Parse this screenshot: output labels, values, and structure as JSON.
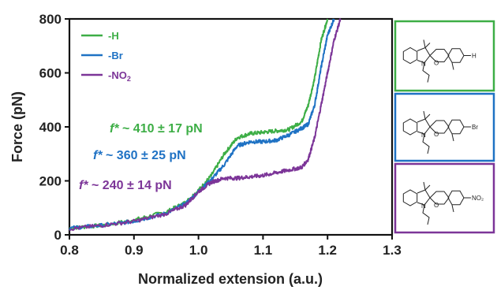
{
  "chart_data": {
    "type": "line",
    "xlabel": "Normalized extension (a.u.)",
    "ylabel": "Force (pN)",
    "xlim": [
      0.8,
      1.3
    ],
    "ylim": [
      0,
      800
    ],
    "xticks": [
      "0.8",
      "0.9",
      "1.0",
      "1.1",
      "1.2",
      "1.3"
    ],
    "yticks": [
      "0",
      "200",
      "400",
      "600",
      "800"
    ],
    "grid": false,
    "legend_position": "top-left",
    "series": [
      {
        "name": "-H",
        "color": "#3dae46",
        "x": [
          0.8,
          0.85,
          0.9,
          0.95,
          0.98,
          1.0,
          1.02,
          1.04,
          1.06,
          1.08,
          1.1,
          1.12,
          1.14,
          1.16,
          1.17,
          1.18,
          1.19,
          1.2
        ],
        "y": [
          25,
          35,
          55,
          85,
          120,
          165,
          220,
          300,
          360,
          375,
          380,
          385,
          390,
          420,
          480,
          580,
          720,
          800
        ]
      },
      {
        "name": "-Br",
        "color": "#1f72c4",
        "x": [
          0.8,
          0.85,
          0.9,
          0.95,
          0.98,
          1.0,
          1.02,
          1.04,
          1.06,
          1.08,
          1.1,
          1.12,
          1.14,
          1.16,
          1.17,
          1.18,
          1.19,
          1.2,
          1.21
        ],
        "y": [
          25,
          35,
          50,
          80,
          115,
          160,
          205,
          260,
          330,
          345,
          345,
          350,
          370,
          395,
          410,
          480,
          620,
          740,
          800
        ]
      },
      {
        "name": "-NO2",
        "color": "#7c3598",
        "x": [
          0.8,
          0.85,
          0.9,
          0.95,
          0.98,
          1.0,
          1.02,
          1.04,
          1.06,
          1.08,
          1.1,
          1.12,
          1.14,
          1.16,
          1.17,
          1.18,
          1.19,
          1.2,
          1.21,
          1.22
        ],
        "y": [
          22,
          35,
          50,
          78,
          110,
          160,
          195,
          210,
          210,
          215,
          220,
          230,
          240,
          250,
          280,
          360,
          480,
          600,
          720,
          800
        ]
      }
    ],
    "annotations": [
      {
        "prefix": "f*",
        "text": " ~ 410 ± 17 pN",
        "color": "#3dae46"
      },
      {
        "prefix": "f*",
        "text": " ~ 360 ± 25 pN",
        "color": "#1f72c4"
      },
      {
        "prefix": "f*",
        "text": " ~ 240 ± 14 pN",
        "color": "#7c3598"
      }
    ],
    "legend_labels": [
      "-H",
      "-Br",
      "-NO",
      "2"
    ]
  },
  "structures": {
    "panels": [
      {
        "name": "h-structure",
        "border_color": "#3dae46",
        "substituent": "H"
      },
      {
        "name": "br-structure",
        "border_color": "#1f72c4",
        "substituent": "Br"
      },
      {
        "name": "no2-structure",
        "border_color": "#7c3598",
        "substituent": "NO₂"
      }
    ],
    "atom_n": "N",
    "atom_o": "O"
  }
}
